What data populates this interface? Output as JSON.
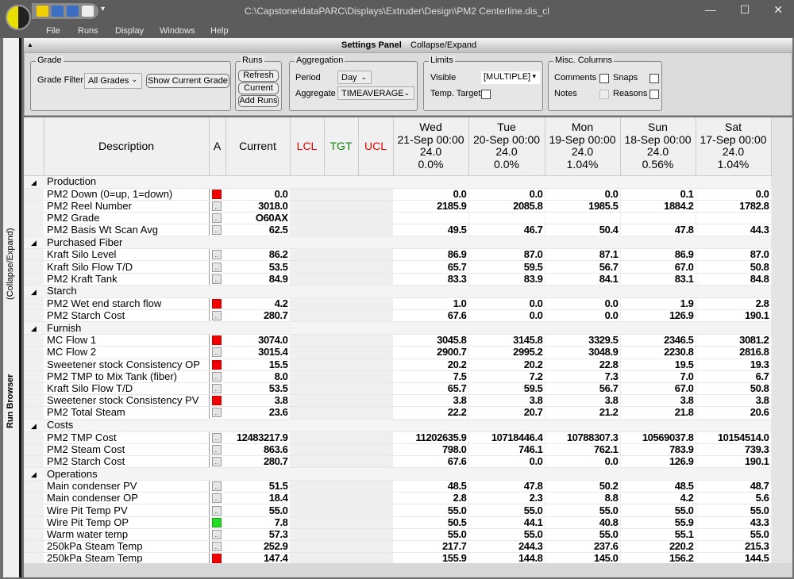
{
  "window": {
    "title": "C:\\Capstone\\dataPARC\\Displays\\Extruder\\Design\\PM2 Centerline.dis_cl",
    "minimize": "—",
    "maximize": "☐",
    "close": "✕"
  },
  "menu": [
    "File",
    "Runs",
    "Display",
    "Windows",
    "Help"
  ],
  "sidebar": {
    "run_browser": "Run Browser",
    "collapse": "(Collapse/Expand)"
  },
  "settings_panel": {
    "title": "Settings Panel",
    "collapse": "Collapse/Expand",
    "grade": {
      "legend": "Grade",
      "filter_label": "Grade Filter",
      "filter_value": "All Grades",
      "show_current": "Show Current Grade"
    },
    "runs": {
      "legend": "Runs",
      "refresh": "Refresh",
      "current": "Current",
      "add": "Add Runs"
    },
    "aggregation": {
      "legend": "Aggregation",
      "period_label": "Period",
      "period_value": "Day",
      "aggregate_label": "Aggregate",
      "aggregate_value": "TIMEAVERAGE"
    },
    "limits": {
      "legend": "Limits",
      "visible_label": "Visible",
      "visible_value": "[MULTIPLE]",
      "temp_target": "Temp. Target"
    },
    "misc": {
      "legend": "Misc. Columns",
      "comments": "Comments",
      "snaps": "Snaps",
      "notes": "Notes",
      "reasons": "Reasons"
    }
  },
  "table": {
    "headers": {
      "description": "Description",
      "a": "A",
      "current": "Current",
      "lcl": "LCL",
      "tgt": "TGT",
      "ucl": "UCL"
    },
    "colors": {
      "lcl": "#e00000",
      "tgt": "#108010",
      "ucl": "#e00000"
    },
    "periods": [
      {
        "day": "Wed",
        "date": "21-Sep 00:00",
        "hours": "24.0",
        "pct": "0.0%"
      },
      {
        "day": "Tue",
        "date": "20-Sep 00:00",
        "hours": "24.0",
        "pct": "0.0%"
      },
      {
        "day": "Mon",
        "date": "19-Sep 00:00",
        "hours": "24.0",
        "pct": "1.04%"
      },
      {
        "day": "Sun",
        "date": "18-Sep 00:00",
        "hours": "24.0",
        "pct": "0.56%"
      },
      {
        "day": "Sat",
        "date": "17-Sep 00:00",
        "hours": "24.0",
        "pct": "1.04%"
      }
    ],
    "groups": [
      {
        "name": "Production",
        "rows": [
          {
            "desc": "PM2 Down (0=up, 1=down)",
            "ind": "red",
            "current": "0.0",
            "values": [
              "0.0",
              "0.0",
              "0.0",
              "0.1",
              "0.0"
            ]
          },
          {
            "desc": "PM2 Reel Number",
            "ind": "btn",
            "current": "3018.0",
            "values": [
              "2185.9",
              "2085.8",
              "1985.5",
              "1884.2",
              "1782.8"
            ]
          },
          {
            "desc": "PM2 Grade",
            "ind": "btn",
            "current": "O60AX",
            "values": [
              "",
              "",
              "",
              "",
              ""
            ]
          },
          {
            "desc": "PM2 Basis Wt Scan Avg",
            "ind": "btn",
            "current": "62.5",
            "values": [
              "49.5",
              "46.7",
              "50.4",
              "47.8",
              "44.3"
            ]
          }
        ]
      },
      {
        "name": "Purchased Fiber",
        "rows": [
          {
            "desc": "Kraft Silo Level",
            "ind": "btn",
            "current": "86.2",
            "values": [
              "86.9",
              "87.0",
              "87.1",
              "86.9",
              "87.0"
            ]
          },
          {
            "desc": "Kraft Silo Flow T/D",
            "ind": "btn",
            "current": "53.5",
            "values": [
              "65.7",
              "59.5",
              "56.7",
              "67.0",
              "50.8"
            ]
          },
          {
            "desc": "PM2 Kraft Tank",
            "ind": "btn",
            "current": "84.9",
            "values": [
              "83.3",
              "83.9",
              "84.1",
              "83.1",
              "84.8"
            ]
          }
        ]
      },
      {
        "name": "Starch",
        "rows": [
          {
            "desc": "PM2 Wet end starch flow",
            "ind": "red",
            "current": "4.2",
            "values": [
              "1.0",
              "0.0",
              "0.0",
              "1.9",
              "2.8"
            ]
          },
          {
            "desc": "PM2 Starch Cost",
            "ind": "btn",
            "current": "280.7",
            "values": [
              "67.6",
              "0.0",
              "0.0",
              "126.9",
              "190.1"
            ]
          }
        ]
      },
      {
        "name": "Furnish",
        "rows": [
          {
            "desc": "MC Flow 1",
            "ind": "red",
            "current": "3074.0",
            "values": [
              "3045.8",
              "3145.8",
              "3329.5",
              "2346.5",
              "3081.2"
            ]
          },
          {
            "desc": "MC Flow 2",
            "ind": "btn",
            "current": "3015.4",
            "values": [
              "2900.7",
              "2995.2",
              "3048.9",
              "2230.8",
              "2816.8"
            ]
          },
          {
            "desc": "Sweetener stock Consistency OP",
            "ind": "red",
            "current": "15.5",
            "values": [
              "20.2",
              "20.2",
              "22.8",
              "19.5",
              "19.3"
            ]
          },
          {
            "desc": "PM2 TMP to Mix Tank (fiber)",
            "ind": "btn",
            "current": "8.0",
            "values": [
              "7.5",
              "7.2",
              "7.3",
              "7.0",
              "6.7"
            ]
          },
          {
            "desc": "Kraft Silo Flow T/D",
            "ind": "btn",
            "current": "53.5",
            "values": [
              "65.7",
              "59.5",
              "56.7",
              "67.0",
              "50.8"
            ]
          },
          {
            "desc": "Sweetener stock Consistency PV",
            "ind": "red",
            "current": "3.8",
            "values": [
              "3.8",
              "3.8",
              "3.8",
              "3.8",
              "3.8"
            ]
          },
          {
            "desc": "PM2 Total Steam",
            "ind": "btn",
            "current": "23.6",
            "values": [
              "22.2",
              "20.7",
              "21.2",
              "21.8",
              "20.6"
            ]
          }
        ]
      },
      {
        "name": "Costs",
        "rows": [
          {
            "desc": "PM2 TMP Cost",
            "ind": "btn",
            "current": "12483217.9",
            "values": [
              "11202635.9",
              "10718446.4",
              "10788307.3",
              "10569037.8",
              "10154514.0"
            ]
          },
          {
            "desc": "PM2 Steam Cost",
            "ind": "btn",
            "current": "863.6",
            "values": [
              "798.0",
              "746.1",
              "762.1",
              "783.9",
              "739.3"
            ]
          },
          {
            "desc": "PM2 Starch Cost",
            "ind": "btn",
            "current": "280.7",
            "values": [
              "67.6",
              "0.0",
              "0.0",
              "126.9",
              "190.1"
            ]
          }
        ]
      },
      {
        "name": "Operations",
        "rows": [
          {
            "desc": "Main condenser PV",
            "ind": "btn",
            "current": "51.5",
            "values": [
              "48.5",
              "47.8",
              "50.2",
              "48.5",
              "48.7"
            ]
          },
          {
            "desc": "Main condenser OP",
            "ind": "btn",
            "current": "18.4",
            "values": [
              "2.8",
              "2.3",
              "8.8",
              "4.2",
              "5.6"
            ]
          },
          {
            "desc": "Wire Pit Temp PV",
            "ind": "btn",
            "current": "55.0",
            "values": [
              "55.0",
              "55.0",
              "55.0",
              "55.0",
              "55.0"
            ]
          },
          {
            "desc": "Wire Pit Temp OP",
            "ind": "green",
            "current": "7.8",
            "values": [
              "50.5",
              "44.1",
              "40.8",
              "55.9",
              "43.3"
            ]
          },
          {
            "desc": "Warm water temp",
            "ind": "btn",
            "current": "57.3",
            "values": [
              "55.0",
              "55.0",
              "55.0",
              "55.1",
              "55.0"
            ]
          },
          {
            "desc": "250kPa Steam Temp",
            "ind": "btn",
            "current": "252.9",
            "values": [
              "217.7",
              "244.3",
              "237.6",
              "220.2",
              "215.3"
            ]
          },
          {
            "desc": "250kPa Steam Temp",
            "ind": "red",
            "current": "147.4",
            "values": [
              "155.9",
              "144.8",
              "145.0",
              "156.2",
              "144.5"
            ]
          }
        ]
      }
    ]
  }
}
